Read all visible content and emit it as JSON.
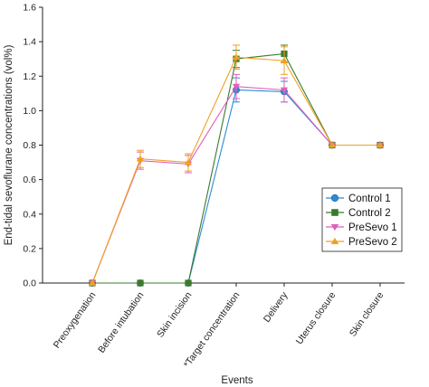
{
  "chart_data": {
    "type": "line",
    "title": "",
    "xlabel": "Events",
    "ylabel": "End-tidal sevoflurane concentrations (vol%)",
    "ylim": [
      0,
      1.6
    ],
    "yticks": [
      0.0,
      0.2,
      0.4,
      0.6,
      0.8,
      1.0,
      1.2,
      1.4,
      1.6
    ],
    "ytick_labels": [
      "0.0",
      "0.2",
      "0.4",
      "0.6",
      "0.8",
      "1.0",
      "1.2",
      "1.4",
      "1.6"
    ],
    "categories": [
      "Preoxygenation",
      "Before intubation",
      "Skin incision",
      "*Target concentration",
      "Delivery",
      "Uterus closure",
      "Skin closure"
    ],
    "grid": false,
    "legend_position": "lower-right",
    "series": [
      {
        "name": "Control 1",
        "color": "#2b8cd6",
        "marker": "circle",
        "values": [
          0.0,
          0.0,
          0.0,
          1.12,
          1.11,
          0.8,
          0.8
        ],
        "errors": [
          0,
          0,
          0,
          0.07,
          0.06,
          0,
          0
        ]
      },
      {
        "name": "Control 2",
        "color": "#3a7a2e",
        "marker": "square",
        "values": [
          0.0,
          0.0,
          0.0,
          1.3,
          1.33,
          0.8,
          0.8
        ],
        "errors": [
          0,
          0,
          0,
          0.05,
          0.05,
          0,
          0
        ]
      },
      {
        "name": "PreSevo 1",
        "color": "#e05fb8",
        "marker": "triangle-down",
        "values": [
          0.0,
          0.71,
          0.69,
          1.14,
          1.12,
          0.8,
          0.8
        ],
        "errors": [
          0,
          0.05,
          0.05,
          0.07,
          0.07,
          0,
          0
        ]
      },
      {
        "name": "PreSevo 2",
        "color": "#f0a020",
        "marker": "triangle-up",
        "values": [
          0.0,
          0.72,
          0.7,
          1.31,
          1.29,
          0.8,
          0.8
        ],
        "errors": [
          0,
          0.05,
          0.05,
          0.07,
          0.08,
          0,
          0
        ]
      }
    ]
  }
}
